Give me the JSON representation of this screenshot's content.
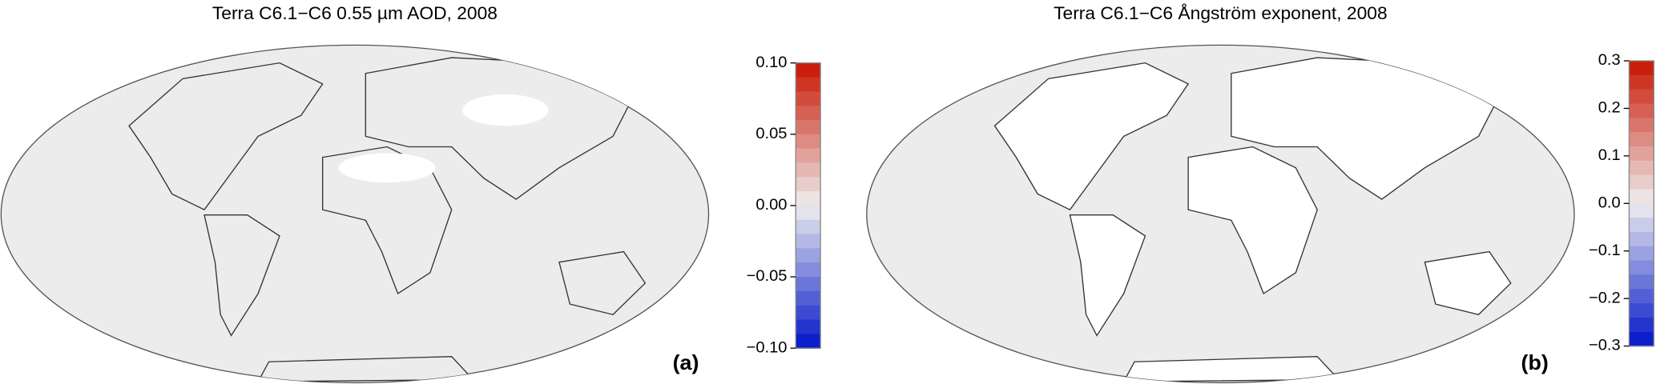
{
  "panels": [
    {
      "title": "Terra C6.1−C6 0.55  µm AOD, 2008",
      "label": "(a)",
      "colorbar": {
        "lim": [
          -0.1,
          0.1
        ],
        "ticks": [
          {
            "value": 0.1,
            "label": "0.10"
          },
          {
            "value": 0.05,
            "label": "0.05"
          },
          {
            "value": 0,
            "label": "0.00"
          },
          {
            "value": -0.05,
            "label": "−0.05"
          },
          {
            "value": -0.1,
            "label": "−0.10"
          }
        ]
      }
    },
    {
      "title": "Terra C6.1−C6  Ångström exponent, 2008",
      "label": "(b)",
      "colorbar": {
        "lim": [
          -0.3,
          0.3
        ],
        "ticks": [
          {
            "value": 0.3,
            "label": "0.3"
          },
          {
            "value": 0.2,
            "label": "0.2"
          },
          {
            "value": 0.1,
            "label": "0.1"
          },
          {
            "value": 0,
            "label": "0.0"
          },
          {
            "value": -0.1,
            "label": "−0.1"
          },
          {
            "value": -0.2,
            "label": "−0.2"
          },
          {
            "value": -0.3,
            "label": "−0.3"
          }
        ]
      }
    }
  ]
}
